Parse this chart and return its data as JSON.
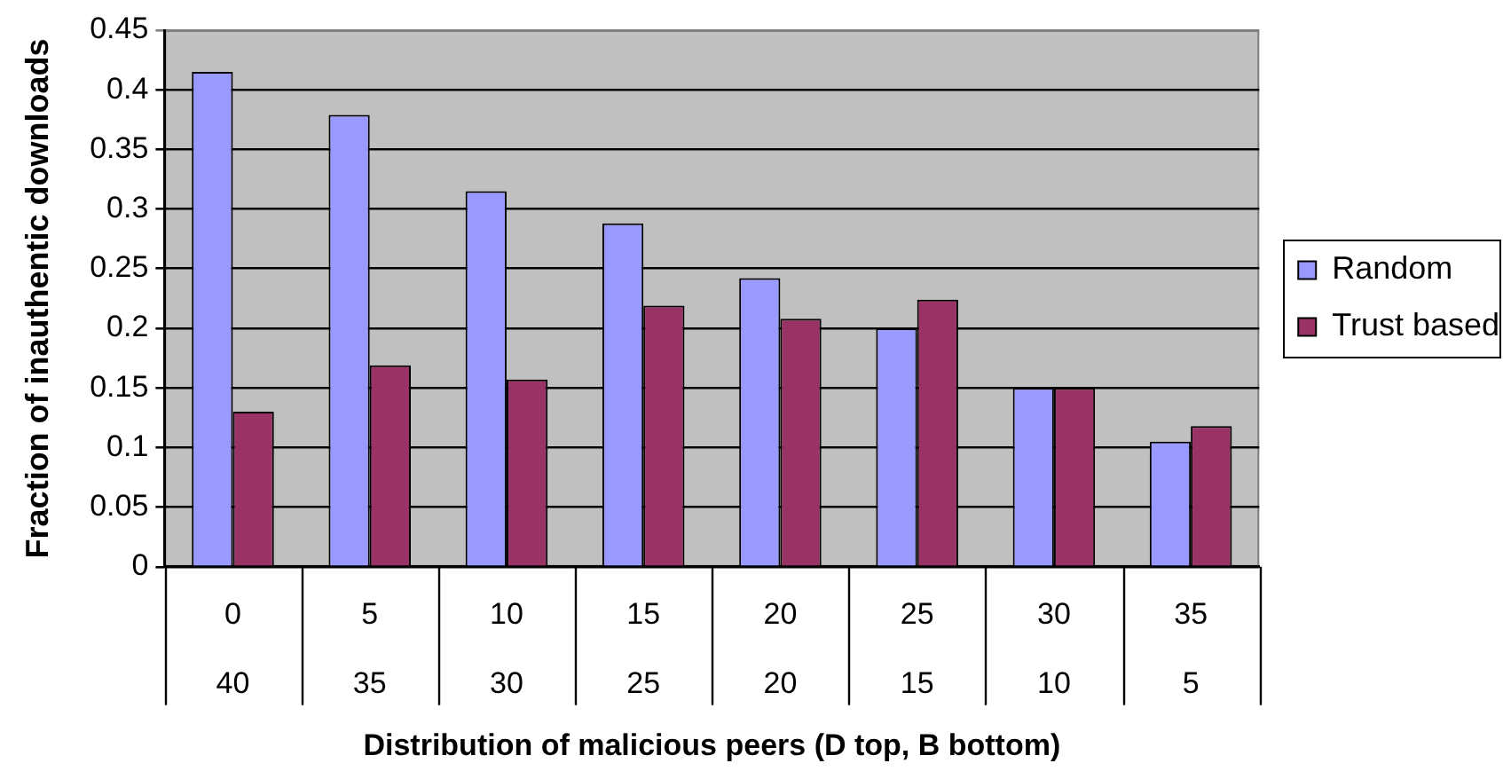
{
  "chart_data": {
    "type": "bar",
    "categories": [
      "0\n40",
      "5\n35",
      "10\n30",
      "15\n25",
      "20\n20",
      "25\n15",
      "30\n10",
      "35\n5"
    ],
    "xlabel": "Distribution of malicious peers (D top, B bottom)",
    "ylabel": "Fraction of inauthentic downloads",
    "ylim": [
      0,
      0.45
    ],
    "yticks": [
      0,
      0.05,
      0.1,
      0.15,
      0.2,
      0.25,
      0.3,
      0.35,
      0.4,
      0.45
    ],
    "grid": "y",
    "legend": "right",
    "series": [
      {
        "name": "Random",
        "color": "#9999ff",
        "values": [
          0.415,
          0.379,
          0.315,
          0.288,
          0.242,
          0.2,
          0.15,
          0.105
        ]
      },
      {
        "name": "Trust based",
        "color": "#993366",
        "values": [
          0.13,
          0.169,
          0.157,
          0.219,
          0.208,
          0.224,
          0.15,
          0.118
        ]
      }
    ]
  }
}
